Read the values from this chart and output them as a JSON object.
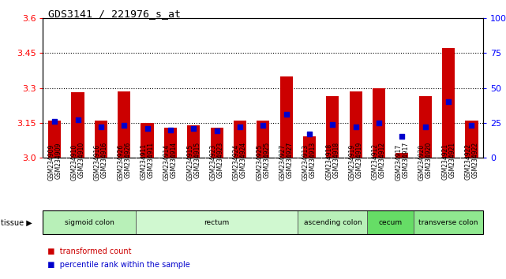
{
  "title": "GDS3141 / 221976_s_at",
  "samples": [
    "GSM234909",
    "GSM234910",
    "GSM234916",
    "GSM234926",
    "GSM234911",
    "GSM234914",
    "GSM234915",
    "GSM234923",
    "GSM234924",
    "GSM234925",
    "GSM234927",
    "GSM234913",
    "GSM234918",
    "GSM234919",
    "GSM234912",
    "GSM234917",
    "GSM234920",
    "GSM234921",
    "GSM234922"
  ],
  "transformed_counts": [
    3.16,
    3.28,
    3.16,
    3.285,
    3.15,
    3.13,
    3.14,
    3.13,
    3.16,
    3.16,
    3.35,
    3.09,
    3.265,
    3.285,
    3.3,
    3.02,
    3.265,
    3.47,
    3.16
  ],
  "percentile_ranks": [
    26,
    27,
    22,
    23,
    21,
    20,
    21,
    19,
    22,
    23,
    31,
    17,
    24,
    22,
    25,
    15,
    22,
    40,
    23
  ],
  "ylim_left": [
    3.0,
    3.6
  ],
  "ylim_right": [
    0,
    100
  ],
  "yticks_left": [
    3.0,
    3.15,
    3.3,
    3.45,
    3.6
  ],
  "yticks_right": [
    0,
    25,
    50,
    75,
    100
  ],
  "grid_lines": [
    3.15,
    3.3,
    3.45
  ],
  "bar_color": "#cc0000",
  "dot_color": "#0000cc",
  "bar_bottom": 3.0,
  "tissue_groups": [
    {
      "label": "sigmoid colon",
      "start": 0,
      "end": 3,
      "color": "#b8f0b8"
    },
    {
      "label": "rectum",
      "start": 4,
      "end": 10,
      "color": "#d0f8d0"
    },
    {
      "label": "ascending colon",
      "start": 11,
      "end": 13,
      "color": "#b8f0b8"
    },
    {
      "label": "cecum",
      "start": 14,
      "end": 15,
      "color": "#66dd66"
    },
    {
      "label": "transverse colon",
      "start": 16,
      "end": 18,
      "color": "#90e890"
    }
  ],
  "legend_items": [
    {
      "label": "transformed count",
      "color": "#cc0000"
    },
    {
      "label": "percentile rank within the sample",
      "color": "#0000cc"
    }
  ]
}
